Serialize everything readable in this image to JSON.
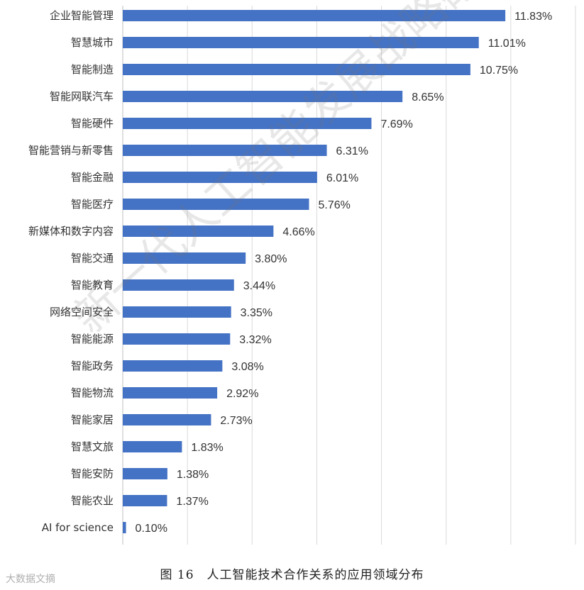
{
  "chart_data": {
    "type": "bar",
    "orientation": "horizontal",
    "categories": [
      "企业智能管理",
      "智慧城市",
      "智能制造",
      "智能网联汽车",
      "智能硬件",
      "智能营销与新零售",
      "智能金融",
      "智能医疗",
      "新媒体和数字内容",
      "智能交通",
      "智能教育",
      "网络空间安全",
      "智能能源",
      "智能政务",
      "智能物流",
      "智能家居",
      "智慧文旅",
      "智能安防",
      "智能农业",
      "AI for science"
    ],
    "values": [
      11.83,
      11.01,
      10.75,
      8.65,
      7.69,
      6.31,
      6.01,
      5.76,
      4.66,
      3.8,
      3.44,
      3.35,
      3.32,
      3.08,
      2.92,
      2.73,
      1.83,
      1.38,
      1.37,
      0.1
    ],
    "labels": [
      "11.83%",
      "11.01%",
      "10.75%",
      "8.65%",
      "7.69%",
      "6.31%",
      "6.01%",
      "5.76%",
      "4.66%",
      "3.80%",
      "3.44%",
      "3.35%",
      "3.32%",
      "3.08%",
      "2.92%",
      "2.73%",
      "1.83%",
      "1.38%",
      "1.37%",
      "0.10%"
    ],
    "xlim": [
      0,
      14
    ],
    "grid": true,
    "bar_color": "#4472C4"
  },
  "caption": "图 16　人工智能技术合作关系的应用领域分布",
  "watermark": "新一代人工智能发展战略研究院",
  "logo": "大数据文摘"
}
